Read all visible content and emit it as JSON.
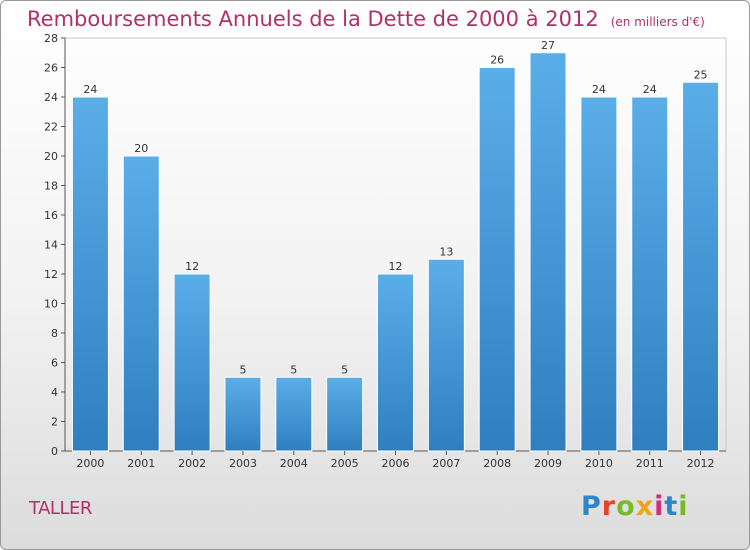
{
  "header": {
    "title": "Remboursements Annuels de la Dette de 2000 à 2012",
    "unit": "(en milliers d'€)"
  },
  "footer": {
    "commune": "TALLER",
    "logo_text": "Proxiti"
  },
  "colors": {
    "title": "#b0306a",
    "bar_top": "#5aaee8",
    "bar_bottom": "#2f7fc0",
    "logo": [
      "#2d86c9",
      "#e8412b",
      "#7ab929",
      "#f2a31c",
      "#d62a7d",
      "#2d86c9",
      "#7ab929"
    ]
  },
  "chart_data": {
    "type": "bar",
    "title": "Remboursements Annuels de la Dette de 2000 à 2012",
    "ylabel": "",
    "xlabel": "",
    "categories": [
      "2000",
      "2001",
      "2002",
      "2003",
      "2004",
      "2005",
      "2006",
      "2007",
      "2008",
      "2009",
      "2010",
      "2011",
      "2012"
    ],
    "values": [
      24,
      20,
      12,
      5,
      5,
      5,
      12,
      13,
      26,
      27,
      24,
      24,
      25
    ],
    "ylim": [
      0,
      28
    ],
    "yticks": [
      0,
      2,
      4,
      6,
      8,
      10,
      12,
      14,
      16,
      18,
      20,
      22,
      24,
      26,
      28
    ],
    "grid": false,
    "legend": "none"
  }
}
